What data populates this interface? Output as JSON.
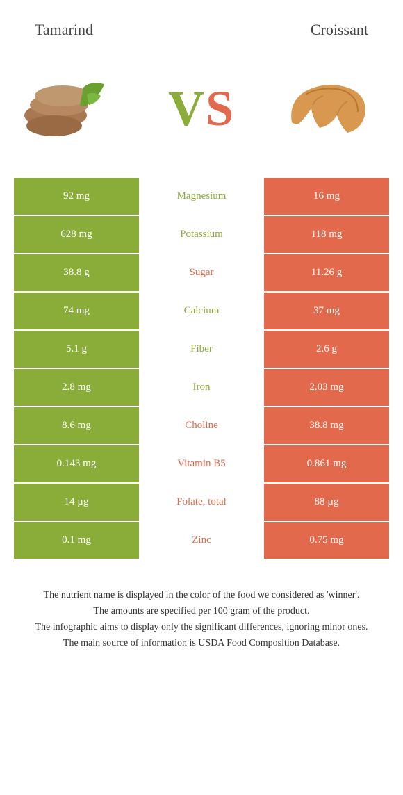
{
  "header": {
    "left_title": "Tamarind",
    "right_title": "Croissant"
  },
  "hero": {
    "vs_v": "V",
    "vs_s": "S"
  },
  "colors": {
    "green": "#8aad3a",
    "orange": "#e2694b",
    "text_green": "#8aad3a",
    "text_orange": "#e2694b"
  },
  "rows": [
    {
      "left": "92 mg",
      "label": "Magnesium",
      "right": "16 mg",
      "winner": "left"
    },
    {
      "left": "628 mg",
      "label": "Potassium",
      "right": "118 mg",
      "winner": "left"
    },
    {
      "left": "38.8 g",
      "label": "Sugar",
      "right": "11.26 g",
      "winner": "right"
    },
    {
      "left": "74 mg",
      "label": "Calcium",
      "right": "37 mg",
      "winner": "left"
    },
    {
      "left": "5.1 g",
      "label": "Fiber",
      "right": "2.6 g",
      "winner": "left"
    },
    {
      "left": "2.8 mg",
      "label": "Iron",
      "right": "2.03 mg",
      "winner": "left"
    },
    {
      "left": "8.6 mg",
      "label": "Choline",
      "right": "38.8 mg",
      "winner": "right"
    },
    {
      "left": "0.143 mg",
      "label": "Vitamin B5",
      "right": "0.861 mg",
      "winner": "right"
    },
    {
      "left": "14 µg",
      "label": "Folate, total",
      "right": "88 µg",
      "winner": "right"
    },
    {
      "left": "0.1 mg",
      "label": "Zinc",
      "right": "0.75 mg",
      "winner": "right"
    }
  ],
  "footer": {
    "line1": "The nutrient name is displayed in the color of the food we considered as 'winner'.",
    "line2": "The amounts are specified per 100 gram of the product.",
    "line3": "The infographic aims to display only the significant differences, ignoring minor ones.",
    "line4": "The main source of information is USDA Food Composition Database."
  }
}
